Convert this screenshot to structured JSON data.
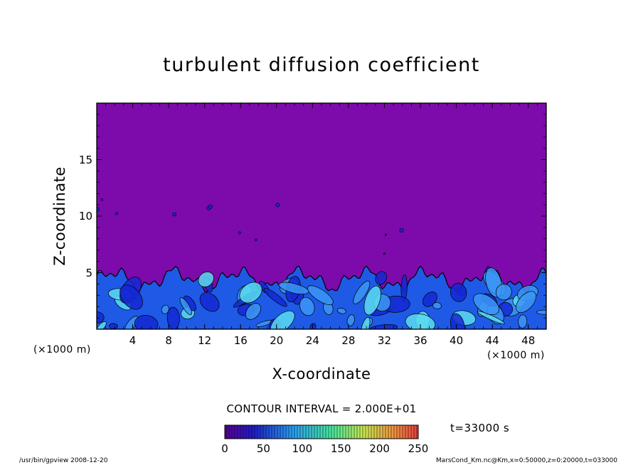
{
  "chart_data": {
    "type": "heatmap",
    "title": "turbulent diffusion coefficient",
    "xlabel": "X-coordinate",
    "ylabel": "Z-coordinate",
    "x_unit_left": "(×1000 m)",
    "x_unit_right": "(×1000 m)",
    "xlim": [
      0,
      50
    ],
    "ylim": [
      0,
      20
    ],
    "x_ticks": [
      4,
      8,
      12,
      16,
      20,
      24,
      28,
      32,
      36,
      40,
      44,
      48
    ],
    "x_tick_labels": [
      "4",
      "8",
      "12",
      "16",
      "20",
      "24",
      "28",
      "32",
      "36",
      "40",
      "44",
      "48"
    ],
    "y_ticks": [
      5,
      10,
      15
    ],
    "y_tick_labels": [
      "5",
      "10",
      "15"
    ],
    "background_value": 0,
    "turbulent_layer_top": 5,
    "colorbar": {
      "range": [
        0,
        250
      ],
      "ticks": [
        0,
        50,
        100,
        150,
        200,
        250
      ],
      "tick_labels": [
        "0",
        "50",
        "100",
        "150",
        "200",
        "250"
      ]
    },
    "contour_interval_text": "CONTOUR INTERVAL = 2.000E+01",
    "time_text": "t=33000 s",
    "colors": {
      "background": "#7d0aaa",
      "deep_blue": "#1428d2",
      "blue": "#1e5ae6",
      "light_blue": "#3c96f5",
      "cyan": "#5adcf0"
    }
  },
  "footer": {
    "left": "/usr/bin/gpview   2008-12-20",
    "right": "MarsCond_Km.nc@Km,x=0:50000,z=0:20000,t=033000"
  }
}
